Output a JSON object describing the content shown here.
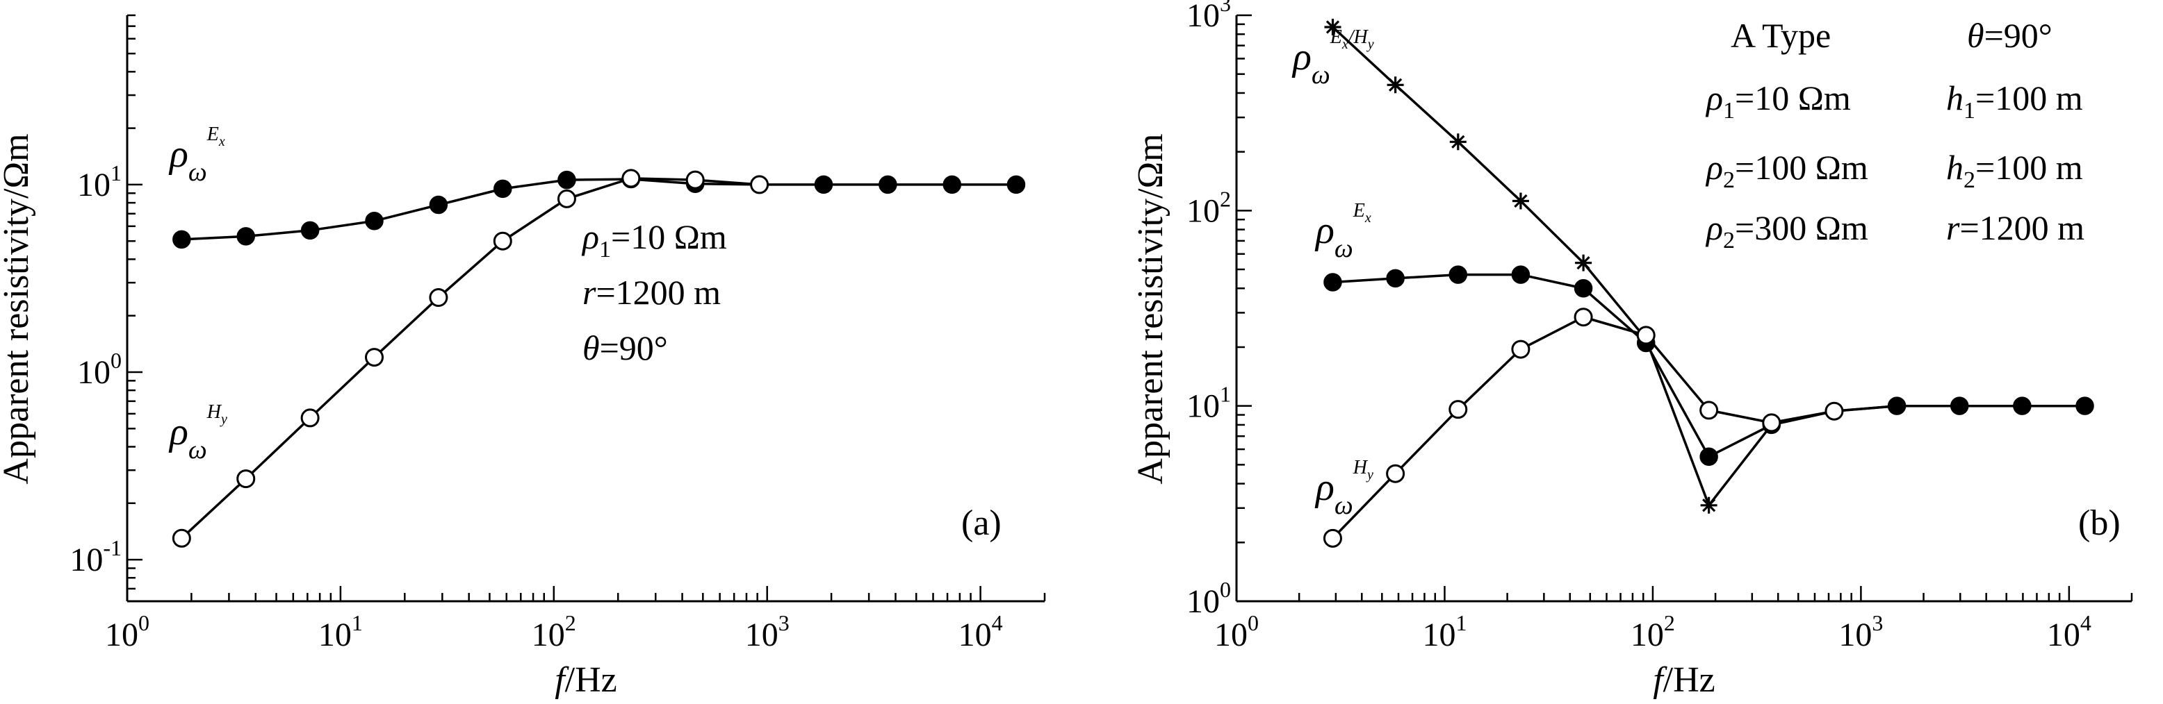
{
  "chart_data": [
    {
      "type": "line",
      "panel_label": "(a)",
      "xlabel": {
        "italic": "f",
        "rest": "/Hz"
      },
      "ylabel": "Apparent resistivity/Ωm",
      "x_scale": "log",
      "y_scale": "log",
      "xlim": [
        1,
        20000
      ],
      "ylim": [
        0.06,
        80
      ],
      "x_ticks": [
        {
          "base": "10",
          "exp": "0"
        },
        {
          "base": "10",
          "exp": "1"
        },
        {
          "base": "10",
          "exp": "2"
        },
        {
          "base": "10",
          "exp": "3"
        },
        {
          "base": "10",
          "exp": "4"
        }
      ],
      "y_ticks": [
        {
          "base": "10",
          "exp": "-1"
        },
        {
          "base": "10",
          "exp": "0"
        },
        {
          "base": "10",
          "exp": "1"
        }
      ],
      "series": [
        {
          "label": {
            "symbol": "ρ",
            "sub": "ω",
            "sup": "E",
            "supsub": "x"
          },
          "marker": "filled-circle",
          "x": [
            1.8,
            3.6,
            7.2,
            14.4,
            28.8,
            57.6,
            115,
            230,
            460,
            920,
            1840,
            3680,
            7360,
            14700
          ],
          "y": [
            5.1,
            5.3,
            5.7,
            6.4,
            7.8,
            9.5,
            10.6,
            10.7,
            10.1,
            10.0,
            10.0,
            10.0,
            10.0,
            10.0
          ]
        },
        {
          "label": {
            "symbol": "ρ",
            "sub": "ω",
            "sup": "H",
            "supsub": "y"
          },
          "marker": "open-circle",
          "x": [
            1.8,
            3.6,
            7.2,
            14.4,
            28.8,
            57.6,
            115,
            230,
            460,
            920
          ],
          "y": [
            0.13,
            0.27,
            0.57,
            1.2,
            2.5,
            5.0,
            8.4,
            10.8,
            10.6,
            10.0
          ]
        }
      ],
      "annotations": [
        {
          "sym": "ρ",
          "sub": "1",
          "text": "=10 Ωm"
        },
        {
          "sym": "r",
          "sub": "",
          "text": "=1200 m"
        },
        {
          "sym": "θ",
          "sub": "",
          "text": "=90°"
        }
      ]
    },
    {
      "type": "line",
      "panel_label": "(b)",
      "xlabel": {
        "italic": "f",
        "rest": "/Hz"
      },
      "ylabel": "Apparent resistivity/Ωm",
      "x_scale": "log",
      "y_scale": "log",
      "xlim": [
        1,
        20000
      ],
      "ylim": [
        1,
        1000
      ],
      "x_ticks": [
        {
          "base": "10",
          "exp": "0"
        },
        {
          "base": "10",
          "exp": "1"
        },
        {
          "base": "10",
          "exp": "2"
        },
        {
          "base": "10",
          "exp": "3"
        },
        {
          "base": "10",
          "exp": "4"
        }
      ],
      "y_ticks": [
        {
          "base": "10",
          "exp": "0"
        },
        {
          "base": "10",
          "exp": "1"
        },
        {
          "base": "10",
          "exp": "2"
        },
        {
          "base": "10",
          "exp": "3"
        }
      ],
      "series": [
        {
          "label": {
            "symbol": "ρ",
            "sub": "ω",
            "sup": "E",
            "supsub": "x",
            "sup2": "/H",
            "supsub2": "y"
          },
          "marker": "star",
          "x": [
            2.9,
            5.8,
            11.6,
            23.2,
            46.4,
            92.8,
            186,
            372,
            744,
            1488,
            2976,
            5952,
            11904
          ],
          "y": [
            870,
            440,
            225,
            112,
            54,
            22,
            3.1,
            8.0,
            9.4,
            10.0,
            10.0,
            10.0,
            10.0
          ]
        },
        {
          "label": {
            "symbol": "ρ",
            "sub": "ω",
            "sup": "E",
            "supsub": "x"
          },
          "marker": "filled-circle",
          "x": [
            2.9,
            5.8,
            11.6,
            23.2,
            46.4,
            92.8,
            186,
            372,
            744,
            1488,
            2976,
            5952,
            11904
          ],
          "y": [
            43,
            45,
            47,
            47,
            40,
            21,
            5.5,
            8.0,
            9.4,
            10.0,
            10.0,
            10.0,
            10.0
          ]
        },
        {
          "label": {
            "symbol": "ρ",
            "sub": "ω",
            "sup": "H",
            "supsub": "y"
          },
          "marker": "open-circle",
          "x": [
            2.9,
            5.8,
            11.6,
            23.2,
            46.4,
            92.8,
            186,
            372,
            744
          ],
          "y": [
            2.1,
            4.5,
            9.6,
            19.5,
            28.5,
            23,
            9.5,
            8.2,
            9.4
          ]
        }
      ],
      "annotations": [
        {
          "sym": "",
          "sub": "",
          "text": "A  Type"
        },
        {
          "sym": "θ",
          "sub": "",
          "text": "=90°"
        },
        {
          "sym": "ρ",
          "sub": "1",
          "text": "=10 Ωm"
        },
        {
          "sym": "h",
          "sub": "1",
          "text": "=100 m"
        },
        {
          "sym": "ρ",
          "sub": "2",
          "text": "=100 Ωm"
        },
        {
          "sym": "h",
          "sub": "2",
          "text": "=100 m"
        },
        {
          "sym": "ρ",
          "sub": "2",
          "text": "=300 Ωm"
        },
        {
          "sym": "r",
          "sub": "",
          "text": "=1200 m"
        }
      ]
    }
  ]
}
